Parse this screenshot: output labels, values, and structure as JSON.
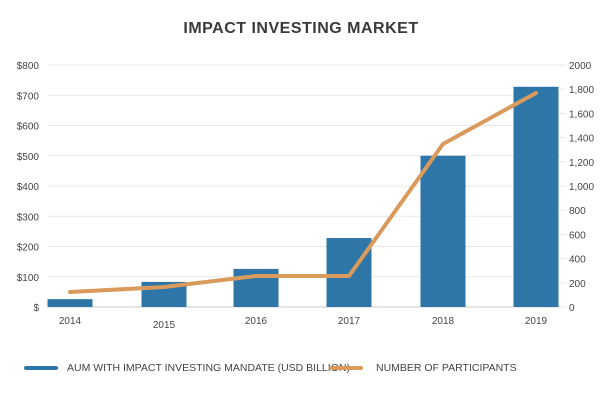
{
  "title": "IMPACT INVESTING MARKET",
  "colors": {
    "bar": "#2e75a8",
    "line": "#d99a5b",
    "grid": "#e8e8e8",
    "axis": "#cccccc"
  },
  "legend": {
    "bar_label": "AUM WITH IMPACT INVESTING MANDATE (USD BILLION)",
    "line_label": "NUMBER OF PARTICIPANTS"
  },
  "chart_data": {
    "type": "bar+line",
    "title": "IMPACT INVESTING MARKET",
    "categories": [
      "2014",
      "2015",
      "2016",
      "2017",
      "2018",
      "2019"
    ],
    "series": [
      {
        "name": "AUM WITH IMPACT INVESTING MANDATE (USD BILLION)",
        "type": "bar",
        "axis": "left",
        "values": [
          26,
          83,
          126,
          228,
          500,
          728
        ]
      },
      {
        "name": "NUMBER OF PARTICIPANTS",
        "type": "line",
        "axis": "right",
        "values": [
          124,
          165,
          256,
          256,
          1347,
          1769
        ]
      }
    ],
    "y_left": {
      "ticks": [
        "$",
        "$100",
        "$200",
        "$300",
        "$400",
        "$500",
        "$600",
        "$700",
        "$800"
      ],
      "range": [
        0,
        800
      ]
    },
    "y_right": {
      "ticks": [
        "0",
        "200",
        "400",
        "600",
        "800",
        "1,000",
        "1,200",
        "1,400",
        "1,600",
        "1,800",
        "2000"
      ],
      "range": [
        0,
        2000
      ]
    },
    "xlabel": "",
    "ylabel": "",
    "grid": true,
    "legend_position": "bottom"
  }
}
